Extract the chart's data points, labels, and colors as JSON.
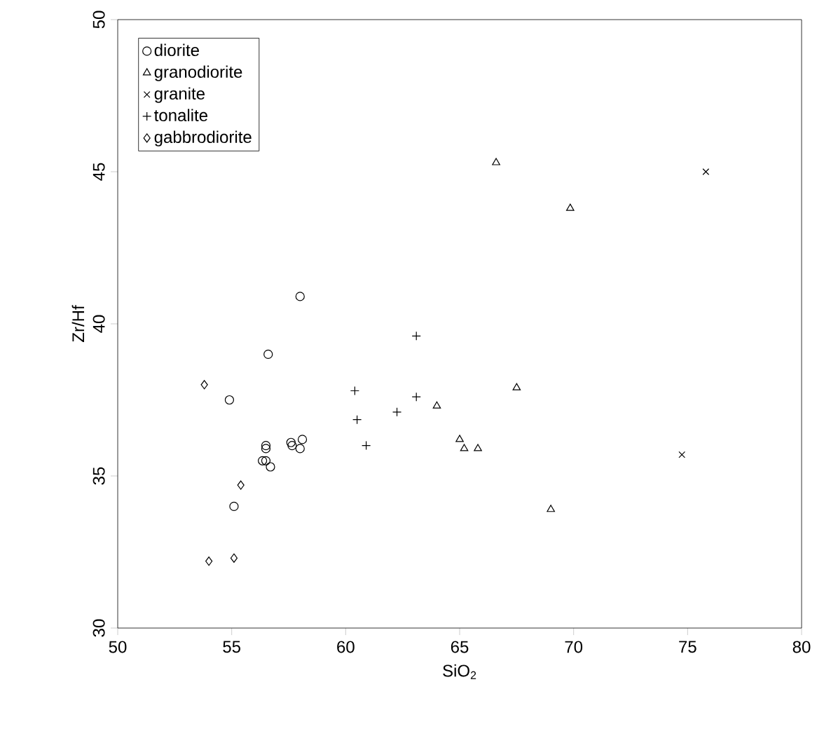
{
  "chart_data": {
    "type": "scatter",
    "xlabel": "SiO$_{2}$",
    "ylabel": "Zr/Hf",
    "xlim": [
      50,
      80
    ],
    "ylim": [
      30,
      50
    ],
    "xticks": [
      50,
      55,
      60,
      65,
      70,
      75,
      80
    ],
    "yticks": [
      30,
      35,
      40,
      45,
      50
    ],
    "grid": false,
    "legend": "top left",
    "series": [
      {
        "name": "diorite",
        "color": "#000000",
        "marker": "circle",
        "x": [
          58.0,
          56.6,
          54.9,
          56.5,
          56.5,
          56.35,
          56.5,
          56.7,
          57.6,
          57.65,
          58.1,
          58.0,
          55.1
        ],
        "values": [
          40.9,
          39.0,
          37.5,
          36.0,
          35.9,
          35.5,
          35.5,
          35.3,
          36.1,
          36.0,
          36.2,
          35.9,
          34.0
        ]
      },
      {
        "name": "granodiorite",
        "color": "#000000",
        "marker": "triangle",
        "x": [
          66.6,
          69.85,
          64.0,
          67.5,
          65.0,
          65.2,
          65.8,
          69.0
        ],
        "values": [
          45.3,
          43.8,
          37.3,
          37.9,
          36.2,
          35.9,
          35.9,
          33.9
        ]
      },
      {
        "name": "granite",
        "color": "#000000",
        "marker": "cross",
        "x": [
          75.8,
          74.75
        ],
        "values": [
          45.0,
          35.7
        ]
      },
      {
        "name": "tonalite",
        "color": "#000000",
        "marker": "plus",
        "x": [
          63.1,
          63.1,
          62.25,
          60.4,
          60.5,
          60.9
        ],
        "values": [
          39.6,
          37.6,
          37.1,
          37.8,
          36.85,
          36.0
        ]
      },
      {
        "name": "gabbrodiorite",
        "color": "#000000",
        "marker": "diamond",
        "x": [
          53.8,
          55.4,
          54.0,
          55.1
        ],
        "values": [
          38.0,
          34.7,
          32.2,
          32.3
        ]
      }
    ]
  }
}
